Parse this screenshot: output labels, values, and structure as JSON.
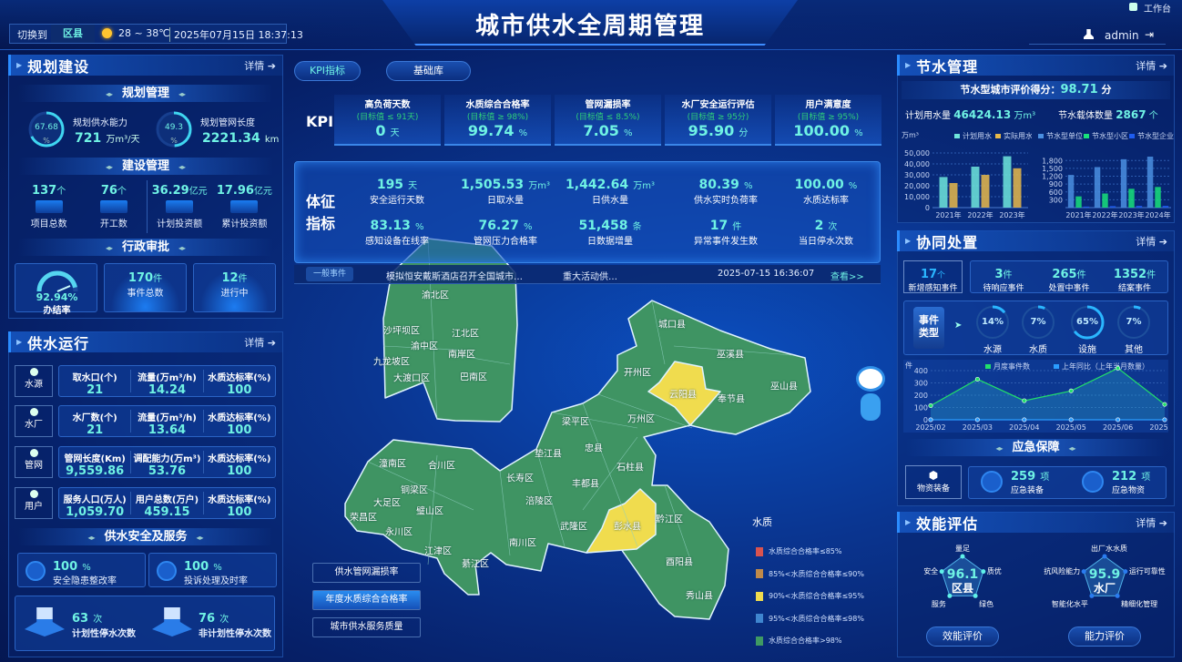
{
  "header": {
    "title": "城市供水全周期管理",
    "switch_label": "切换到",
    "region": "区县",
    "temperature": "28 ~ 38℃",
    "datetime": "2025年07月15日 18:37:13",
    "workbench": "工作台",
    "user": "admin",
    "icons": [
      "sun-icon",
      "user-icon",
      "logout-icon",
      "workbench-icon"
    ]
  },
  "common": {
    "more": "详情"
  },
  "planning": {
    "title": "规划建设",
    "mgmt": {
      "title": "规划管理",
      "items": [
        {
          "pct": "67.68",
          "pct_unit": "%",
          "label": "规划供水能力",
          "value": "721",
          "unit": "万m³/天",
          "fill": 67.68
        },
        {
          "pct": "49.3",
          "pct_unit": "%",
          "label": "规划管网长度",
          "value": "2221.34",
          "unit": "km",
          "fill": 49.3
        }
      ]
    },
    "build": {
      "title": "建设管理",
      "items": [
        {
          "value": "137",
          "unit": "个",
          "label": "项目总数"
        },
        {
          "value": "76",
          "unit": "个",
          "label": "开工数"
        },
        {
          "value": "36.29",
          "unit": "亿元",
          "label": "计划投资额"
        },
        {
          "value": "17.96",
          "unit": "亿元",
          "label": "累计投资额"
        }
      ]
    },
    "approval": {
      "title": "行政审批",
      "rate": "92.94%",
      "rate_label": "办结率",
      "rate_value": 92.94,
      "cards": [
        {
          "value": "170",
          "unit": "件",
          "label": "事件总数"
        },
        {
          "value": "12",
          "unit": "件",
          "label": "进行中"
        }
      ]
    }
  },
  "supply": {
    "title": "供水运行",
    "rows": [
      {
        "name": "水源",
        "icon": "water-source-icon",
        "cols": [
          {
            "h": "取水口(个)",
            "v": "21"
          },
          {
            "h": "流量(万m³/h)",
            "v": "14.24"
          },
          {
            "h": "水质达标率(%)",
            "v": "100"
          }
        ]
      },
      {
        "name": "水厂",
        "icon": "water-plant-icon",
        "cols": [
          {
            "h": "水厂数(个)",
            "v": "21"
          },
          {
            "h": "流量(万m³/h)",
            "v": "13.64"
          },
          {
            "h": "水质达标率(%)",
            "v": "100"
          }
        ]
      },
      {
        "name": "管网",
        "icon": "pipe-icon",
        "cols": [
          {
            "h": "管网长度(Km)",
            "v": "9,559.86"
          },
          {
            "h": "调配能力(万m³)",
            "v": "53.76"
          },
          {
            "h": "水质达标率(%)",
            "v": "100"
          }
        ]
      },
      {
        "name": "用户",
        "icon": "user-icon",
        "cols": [
          {
            "h": "服务人口(万人)",
            "v": "1,059.70"
          },
          {
            "h": "用户总数(万户)",
            "v": "459.15"
          },
          {
            "h": "水质达标率(%)",
            "v": "100"
          }
        ]
      }
    ],
    "safety": {
      "title": "供水安全及服务",
      "cards": [
        {
          "value": "100",
          "unit": "%",
          "label": "安全隐患整改率"
        },
        {
          "value": "100",
          "unit": "%",
          "label": "投诉处理及时率"
        }
      ],
      "outages": [
        {
          "value": "63",
          "unit": "次",
          "label": "计划性停水次数"
        },
        {
          "value": "76",
          "unit": "次",
          "label": "非计划性停水次数"
        }
      ]
    }
  },
  "center": {
    "tabs": [
      {
        "label": "KPI指标",
        "active": true
      },
      {
        "label": "基础库",
        "active": false
      }
    ],
    "kpi": {
      "label": "KPI",
      "items": [
        {
          "title": "高负荷天数",
          "target": "(目标值 ≤ 91天)",
          "value": "0",
          "unit": "天"
        },
        {
          "title": "水质综合合格率",
          "target": "(目标值 ≥ 98%)",
          "value": "99.74",
          "unit": "%"
        },
        {
          "title": "管网漏损率",
          "target": "(目标值 ≤ 8.5%)",
          "value": "7.05",
          "unit": "%"
        },
        {
          "title": "水厂安全运行评估",
          "target": "(目标值 ≥ 95分)",
          "value": "95.90",
          "unit": "分"
        },
        {
          "title": "用户满意度",
          "target": "(目标值 ≥ 95%)",
          "value": "100.00",
          "unit": "%"
        }
      ]
    },
    "vitals": {
      "label1": "体征",
      "label2": "指标",
      "items": [
        {
          "value": "195",
          "unit": "天",
          "label": "安全运行天数"
        },
        {
          "value": "1,505.53",
          "unit": "万m³",
          "label": "日取水量"
        },
        {
          "value": "1,442.64",
          "unit": "万m³",
          "label": "日供水量"
        },
        {
          "value": "80.39",
          "unit": "%",
          "label": "供水实时负荷率"
        },
        {
          "value": "100.00",
          "unit": "%",
          "label": "水质达标率"
        },
        {
          "value": "83.13",
          "unit": "%",
          "label": "感知设备在线率"
        },
        {
          "value": "76.27",
          "unit": "%",
          "label": "管网压力合格率"
        },
        {
          "value": "51,458",
          "unit": "条",
          "label": "日数据增量"
        },
        {
          "value": "17",
          "unit": "件",
          "label": "异常事件发生数"
        },
        {
          "value": "2",
          "unit": "次",
          "label": "当日停水次数"
        }
      ]
    },
    "ticker": {
      "tag": "一般事件",
      "text1": "模拟恒安戴斯酒店召开全国城市…",
      "text2": "重大活动供…",
      "time": "2025-07-15 16:36:07",
      "link": "查看>>"
    },
    "map": {
      "layers": [
        {
          "label": "供水管网漏损率",
          "active": false
        },
        {
          "label": "年度水质综合合格率",
          "active": true
        },
        {
          "label": "城市供水服务质量",
          "active": false
        }
      ],
      "legend_title": "水质",
      "legend": [
        {
          "label": "水质综合合格率≤85%",
          "color": "#d9534f"
        },
        {
          "label": "85%<水质综合合格率≤90%",
          "color": "#c08a4a"
        },
        {
          "label": "90%<水质综合合格率≤95%",
          "color": "#f0dc4e"
        },
        {
          "label": "95%<水质综合合格率≤98%",
          "color": "#3f86d0"
        },
        {
          "label": "水质综合合格率>98%",
          "color": "#3f9a63"
        }
      ],
      "regions": [
        "渝北区",
        "沙坪坝区",
        "江北区",
        "渝中区",
        "南岸区",
        "九龙坡区",
        "大渡口区",
        "巴南区",
        "城口县",
        "巫溪县",
        "开州区",
        "云阳县",
        "奉节县",
        "巫山县",
        "梁平区",
        "万州区",
        "忠县",
        "垫江县",
        "石柱县",
        "长寿区",
        "丰都县",
        "涪陵区",
        "武隆区",
        "彭水县",
        "黔江区",
        "酉阳县",
        "秀山县",
        "南川区",
        "綦江区",
        "江津区",
        "永川区",
        "荣昌区",
        "大足区",
        "璧山区",
        "铜梁区",
        "潼南区",
        "合川区"
      ]
    }
  },
  "water_saving": {
    "title": "节水管理",
    "score_label": "节水型城市评价得分：",
    "score": "98.71",
    "score_unit": "分",
    "plan_label": "计划用水量",
    "plan_value": "46424.13",
    "plan_unit": "万m³",
    "carrier_label": "节水载体数量",
    "carrier_value": "2867",
    "carrier_unit": "个"
  },
  "chart_data": [
    {
      "type": "bar",
      "ylabel": "万m³",
      "categories": [
        "2021年",
        "2022年",
        "2023年"
      ],
      "ylim": [
        0,
        50000
      ],
      "yticks": [
        "0",
        "10,000",
        "20,000",
        "30,000",
        "40,000",
        "50,000"
      ],
      "legend": "top",
      "series": [
        {
          "name": "计划用水",
          "values": [
            28000,
            37500,
            47000
          ],
          "color": "#6ee6dc"
        },
        {
          "name": "实际用水",
          "values": [
            22500,
            30000,
            36000
          ],
          "color": "#e8b94a"
        }
      ]
    },
    {
      "type": "bar",
      "categories": [
        "2021年",
        "2022年",
        "2023年",
        "2024年"
      ],
      "ylim": [
        0,
        1950
      ],
      "yticks": [
        "300",
        "600",
        "900",
        "1,200",
        "1,500",
        "1,800"
      ],
      "legend": "top",
      "series": [
        {
          "name": "节水型单位",
          "values": [
            1250,
            1550,
            1850,
            1950
          ],
          "color": "#4a8fe0"
        },
        {
          "name": "节水型小区",
          "values": [
            430,
            540,
            720,
            790
          ],
          "color": "#18e07a"
        },
        {
          "name": "节水型企业",
          "values": [
            40,
            60,
            70,
            70
          ],
          "color": "#1e5cf0"
        }
      ]
    },
    {
      "type": "line",
      "ylabel": "件",
      "categories": [
        "2025/02",
        "2025/03",
        "2025/04",
        "2025/05",
        "2025/06",
        "2025/07"
      ],
      "ylim": [
        0,
        400
      ],
      "yticks": [
        "0",
        "100",
        "200",
        "300",
        "400"
      ],
      "legend": "top",
      "series": [
        {
          "name": "月度事件数",
          "values": [
            115,
            330,
            155,
            235,
            420,
            125
          ],
          "color": "#22e06a"
        },
        {
          "name": "上年同比（上年当月数量）",
          "values": [
            0,
            0,
            0,
            0,
            0,
            0
          ],
          "color": "#2a9cff"
        }
      ]
    }
  ],
  "collab": {
    "title": "协同处置",
    "new": {
      "value": "17",
      "unit": "个",
      "label": "新增感知事件"
    },
    "stats": [
      {
        "value": "3",
        "unit": "件",
        "label": "待响应事件"
      },
      {
        "value": "265",
        "unit": "件",
        "label": "处置中事件"
      },
      {
        "value": "1352",
        "unit": "件",
        "label": "结案事件"
      }
    ],
    "type_label1": "事件",
    "type_label2": "类型",
    "types": [
      {
        "pct": "14%",
        "label": "水源",
        "value": 14
      },
      {
        "pct": "7%",
        "label": "水质",
        "value": 7
      },
      {
        "pct": "65%",
        "label": "设施",
        "value": 65
      },
      {
        "pct": "7%",
        "label": "其他",
        "value": 7
      }
    ]
  },
  "emergency": {
    "title": "应急保障",
    "equip_label": "物资装备",
    "items": [
      {
        "value": "259",
        "unit": "项",
        "label": "应急装备"
      },
      {
        "value": "212",
        "unit": "项",
        "label": "应急物资"
      }
    ]
  },
  "efficiency": {
    "title": "效能评估",
    "radars": [
      {
        "score": "96.1",
        "name": "区县",
        "axes": [
          "量足",
          "质优",
          "绿色",
          "服务",
          "安全"
        ],
        "button": "效能评价"
      },
      {
        "score": "95.9",
        "name": "水厂",
        "axes": [
          "出厂水水质",
          "运行可靠性",
          "精细化管理",
          "智能化水平",
          "抗风险能力"
        ],
        "button": "能力评价"
      }
    ]
  }
}
